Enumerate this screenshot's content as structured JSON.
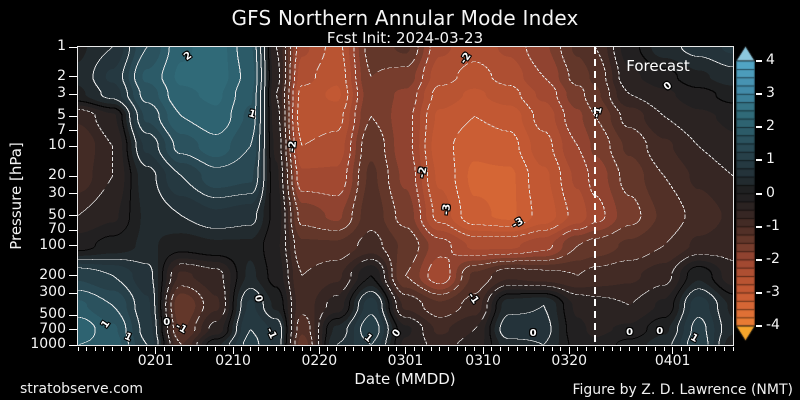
{
  "header": {
    "title": "GFS Northern Annular Mode Index",
    "subtitle": "Fcst Init: 2024-03-23"
  },
  "axes": {
    "ylabel": "Pressure [hPa]",
    "xlabel": "Date (MMDD)"
  },
  "forecast_label": "Forecast",
  "watermark": "stratobserve.com",
  "credit": "Figure by Z. D. Lawrence (NMT)",
  "chart_data": {
    "type": "heatmap",
    "title": "GFS Northern Annular Mode Index",
    "subtitle": "Fcst Init: 2024-03-23",
    "xlabel": "Date (MMDD)",
    "ylabel": "Pressure [hPa]",
    "x_start_date": "2024-01-23",
    "x_end_date": "2024-04-08",
    "total_days": 76,
    "x_ticks": [
      {
        "label": "0201",
        "day": 9
      },
      {
        "label": "0210",
        "day": 18
      },
      {
        "label": "0220",
        "day": 28
      },
      {
        "label": "0301",
        "day": 38
      },
      {
        "label": "0310",
        "day": 47
      },
      {
        "label": "0320",
        "day": 57
      },
      {
        "label": "0401",
        "day": 69
      }
    ],
    "y_scale": "log",
    "pressure_ticks": [
      1,
      2,
      3,
      5,
      7,
      10,
      20,
      30,
      50,
      70,
      100,
      200,
      300,
      500,
      700,
      1000
    ],
    "pressure_levels": [
      1,
      2,
      3,
      5,
      10,
      20,
      50,
      100,
      200,
      400,
      700,
      1000
    ],
    "time_days": [
      0,
      4,
      8,
      12,
      16,
      20,
      23,
      26,
      30,
      34,
      38,
      42,
      46,
      50,
      54,
      58,
      60,
      64,
      68,
      72,
      76
    ],
    "values": [
      [
        0.2,
        0.5,
        1.5,
        2.2,
        2.4,
        1.8,
        -0.5,
        -2.2,
        -2.6,
        -1.4,
        -1.2,
        -2.2,
        -2.4,
        -2.2,
        -1.8,
        -1.2,
        -1.0,
        -0.1,
        0.4,
        0.6,
        0.8
      ],
      [
        0.3,
        0.8,
        1.8,
        2.3,
        2.4,
        1.9,
        -0.4,
        -2.4,
        -2.7,
        -1.5,
        -1.6,
        -2.4,
        -2.6,
        -2.4,
        -2.0,
        -1.4,
        -1.2,
        -0.3,
        -0.1,
        0.2,
        0.4
      ],
      [
        0.2,
        0.6,
        1.6,
        2.2,
        2.3,
        1.8,
        -0.5,
        -2.6,
        -2.8,
        -1.6,
        -1.8,
        -2.6,
        -2.8,
        -2.6,
        -2.2,
        -1.6,
        -1.3,
        -0.5,
        -0.3,
        -0.1,
        0.1
      ],
      [
        -0.7,
        -0.3,
        1.3,
        2.0,
        2.2,
        1.7,
        -0.4,
        -2.7,
        -2.6,
        -1.5,
        -1.9,
        -2.8,
        -3.0,
        -2.9,
        -2.4,
        -1.8,
        -1.5,
        -0.9,
        -0.5,
        -0.3,
        -0.2
      ],
      [
        -1.0,
        -0.5,
        0.8,
        1.6,
        1.9,
        1.5,
        -0.3,
        -2.5,
        -2.4,
        -1.3,
        -1.9,
        -2.9,
        -3.2,
        -3.1,
        -2.6,
        -2.0,
        -1.7,
        -1.2,
        -0.8,
        -0.5,
        -0.3
      ],
      [
        -0.9,
        -0.5,
        0.4,
        1.0,
        1.4,
        1.3,
        -0.2,
        -2.2,
        -2.2,
        -1.2,
        -1.8,
        -2.8,
        -3.3,
        -3.3,
        -2.8,
        -2.2,
        -1.9,
        -1.4,
        -1.0,
        -0.7,
        -0.5
      ],
      [
        -0.5,
        -0.3,
        0.3,
        0.5,
        0.7,
        0.6,
        -0.1,
        -1.6,
        -1.8,
        -1.1,
        -1.6,
        -2.6,
        -3.2,
        -3.3,
        -2.9,
        -2.4,
        -2.1,
        -1.6,
        -1.2,
        -0.9,
        -0.7
      ],
      [
        -0.1,
        0.1,
        0.3,
        0.1,
        0.2,
        0.2,
        -0.2,
        -1.2,
        -1.2,
        -0.9,
        -1.3,
        -1.9,
        -2.3,
        -2.3,
        -2.1,
        -1.5,
        -1.4,
        -1.2,
        -1.0,
        -0.7,
        -0.6
      ],
      [
        1.2,
        1.0,
        0.6,
        -0.8,
        -0.6,
        0.3,
        -0.1,
        -1.0,
        -0.8,
        0.0,
        -1.5,
        -2.2,
        -1.2,
        -0.8,
        -0.9,
        -1.0,
        -0.9,
        -0.8,
        -0.6,
        0.2,
        -0.4
      ],
      [
        1.8,
        1.5,
        0.8,
        -1.5,
        -0.8,
        0.8,
        0.2,
        -0.9,
        -0.4,
        0.9,
        -0.8,
        -1.2,
        -0.9,
        0.4,
        0.5,
        -0.3,
        -0.4,
        -0.5,
        -0.2,
        0.9,
        0.2
      ],
      [
        2.2,
        1.8,
        0.9,
        -1.3,
        -0.4,
        1.0,
        0.7,
        -1.2,
        0.3,
        1.2,
        -0.2,
        -0.8,
        -0.5,
        0.7,
        0.6,
        -0.2,
        -0.3,
        -0.2,
        0.2,
        1.1,
        0.3
      ],
      [
        2.0,
        1.9,
        1.0,
        -1.0,
        0.2,
        1.1,
        0.7,
        -1.4,
        0.5,
        1.0,
        -0.3,
        -0.6,
        -0.4,
        0.4,
        0.5,
        -0.1,
        -0.2,
        0.1,
        0.4,
        1.2,
        0.1
      ]
    ],
    "contour_interval": 0.5,
    "fill_interval": 0.25,
    "forecast_day": 60,
    "colorbar": {
      "vmin": -4,
      "vmax": 4,
      "ticks": [
        4,
        3,
        2,
        1,
        0,
        -1,
        -2,
        -3,
        -4
      ],
      "extend": "both"
    },
    "colormap_stops": [
      [
        -4.5,
        "#f6a52b"
      ],
      [
        -4,
        "#ec8133"
      ],
      [
        -3.5,
        "#da6a35"
      ],
      [
        -3,
        "#c65a33"
      ],
      [
        -2.5,
        "#b45232"
      ],
      [
        -2,
        "#9c4631"
      ],
      [
        -1.5,
        "#6b3a2b"
      ],
      [
        -1,
        "#4a2d26"
      ],
      [
        -0.5,
        "#2f2422"
      ],
      [
        -0.125,
        "#222021"
      ],
      [
        0.125,
        "#1f2021"
      ],
      [
        0.5,
        "#233036"
      ],
      [
        1,
        "#263c44"
      ],
      [
        1.5,
        "#2a4d59"
      ],
      [
        2,
        "#2d5f6d"
      ],
      [
        2.5,
        "#316d7c"
      ],
      [
        3,
        "#3f87a4"
      ],
      [
        4,
        "#54a8c8"
      ],
      [
        4.5,
        "#8cc8de"
      ]
    ],
    "contour_labels": [
      {
        "t": "2",
        "d": 12.8,
        "p": 1.3,
        "r": -35
      },
      {
        "t": "1",
        "d": 20.2,
        "p": 5,
        "r": 15
      },
      {
        "t": "-2",
        "d": 24.9,
        "p": 10.5,
        "r": -85
      },
      {
        "t": "-2",
        "d": 45,
        "p": 1.35,
        "r": -55
      },
      {
        "t": "-2",
        "d": 40,
        "p": 19,
        "r": -80
      },
      {
        "t": "-3",
        "d": 42.8,
        "p": 45,
        "r": -85
      },
      {
        "t": "-3",
        "d": 51,
        "p": 62,
        "r": -30
      },
      {
        "t": "-1",
        "d": 60.3,
        "p": 4.7,
        "r": -75
      },
      {
        "t": "0",
        "d": 68.5,
        "p": 2.6,
        "r": -40
      },
      {
        "t": "1",
        "d": 3.3,
        "p": 650,
        "r": -55
      },
      {
        "t": "1",
        "d": 5.8,
        "p": 880,
        "r": 25
      },
      {
        "t": "0",
        "d": 10.3,
        "p": 610,
        "r": 0
      },
      {
        "t": "-1",
        "d": 12,
        "p": 700,
        "r": 30
      },
      {
        "t": "0",
        "d": 20.9,
        "p": 350,
        "r": 80
      },
      {
        "t": "-1",
        "d": 22.4,
        "p": 800,
        "r": 65
      },
      {
        "t": "1",
        "d": 33.7,
        "p": 890,
        "r": 40
      },
      {
        "t": "0",
        "d": 37,
        "p": 800,
        "r": -55
      },
      {
        "t": "-1",
        "d": 45.8,
        "p": 350,
        "r": 55
      },
      {
        "t": "0",
        "d": 52.8,
        "p": 790,
        "r": 0
      },
      {
        "t": "0",
        "d": 64,
        "p": 780,
        "r": 0
      },
      {
        "t": "0",
        "d": 67.5,
        "p": 760,
        "r": 0
      },
      {
        "t": "1",
        "d": 71.5,
        "p": 900,
        "r": 30
      }
    ]
  }
}
